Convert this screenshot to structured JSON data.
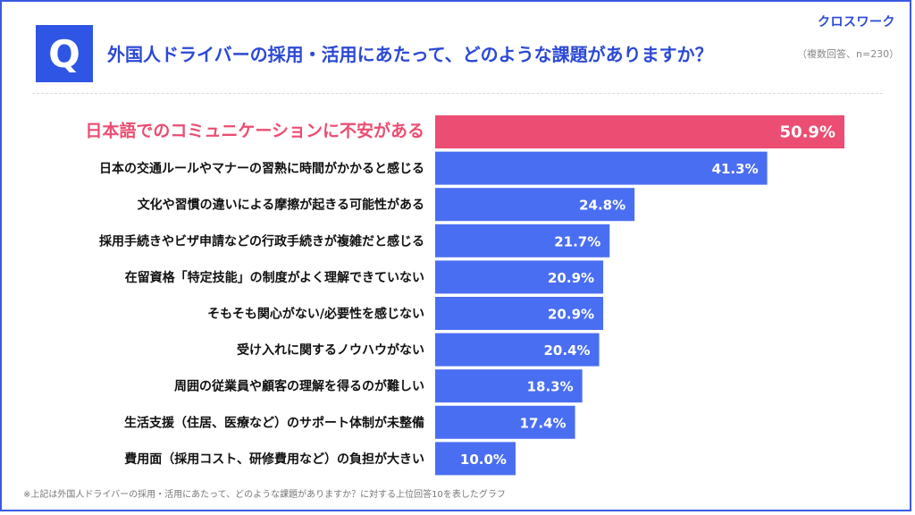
{
  "brand": "クロスワーク",
  "q_label": "Q",
  "title": "外国人ドライバーの採用・活用にあたって、どのような課題がありますか？",
  "note": "（複数回答、n=230）",
  "footnote": "※上記は外国人ドライバーの採用・活用にあたって、どのような課題がありますか？に対する上位回答10を表したグラフ",
  "colors": {
    "highlight": "#ec4d72",
    "bar": "#4a6ef2",
    "brand": "#2b49d6"
  },
  "chart_data": {
    "type": "bar",
    "orientation": "horizontal",
    "categories": [
      "日本語でのコミュニケーションに不安がある",
      "日本の交通ルールやマナーの習熟に時間がかかると感じる",
      "文化や習慣の違いによる摩擦が起きる可能性がある",
      "採用手続きやビザ申請などの行政手続きが複雑だと感じる",
      "在留資格「特定技能」の制度がよく理解できていない",
      "そもそも関心がない/必要性を感じない",
      "受け入れに関するノウハウがない",
      "周囲の従業員や顧客の理解を得るのが難しい",
      "生活支援（住居、医療など）のサポート体制が未整備",
      "費用面（採用コスト、研修費用など）の負担が大きい"
    ],
    "values": [
      50.9,
      41.3,
      24.8,
      21.7,
      20.9,
      20.9,
      20.4,
      18.3,
      17.4,
      10.0
    ],
    "value_labels": [
      "50.9%",
      "41.3%",
      "24.8%",
      "21.7%",
      "20.9%",
      "20.9%",
      "20.4%",
      "18.3%",
      "17.4%",
      "10.0%"
    ],
    "highlight_index": 0,
    "xlim": [
      0,
      50.9
    ],
    "grid": false
  }
}
